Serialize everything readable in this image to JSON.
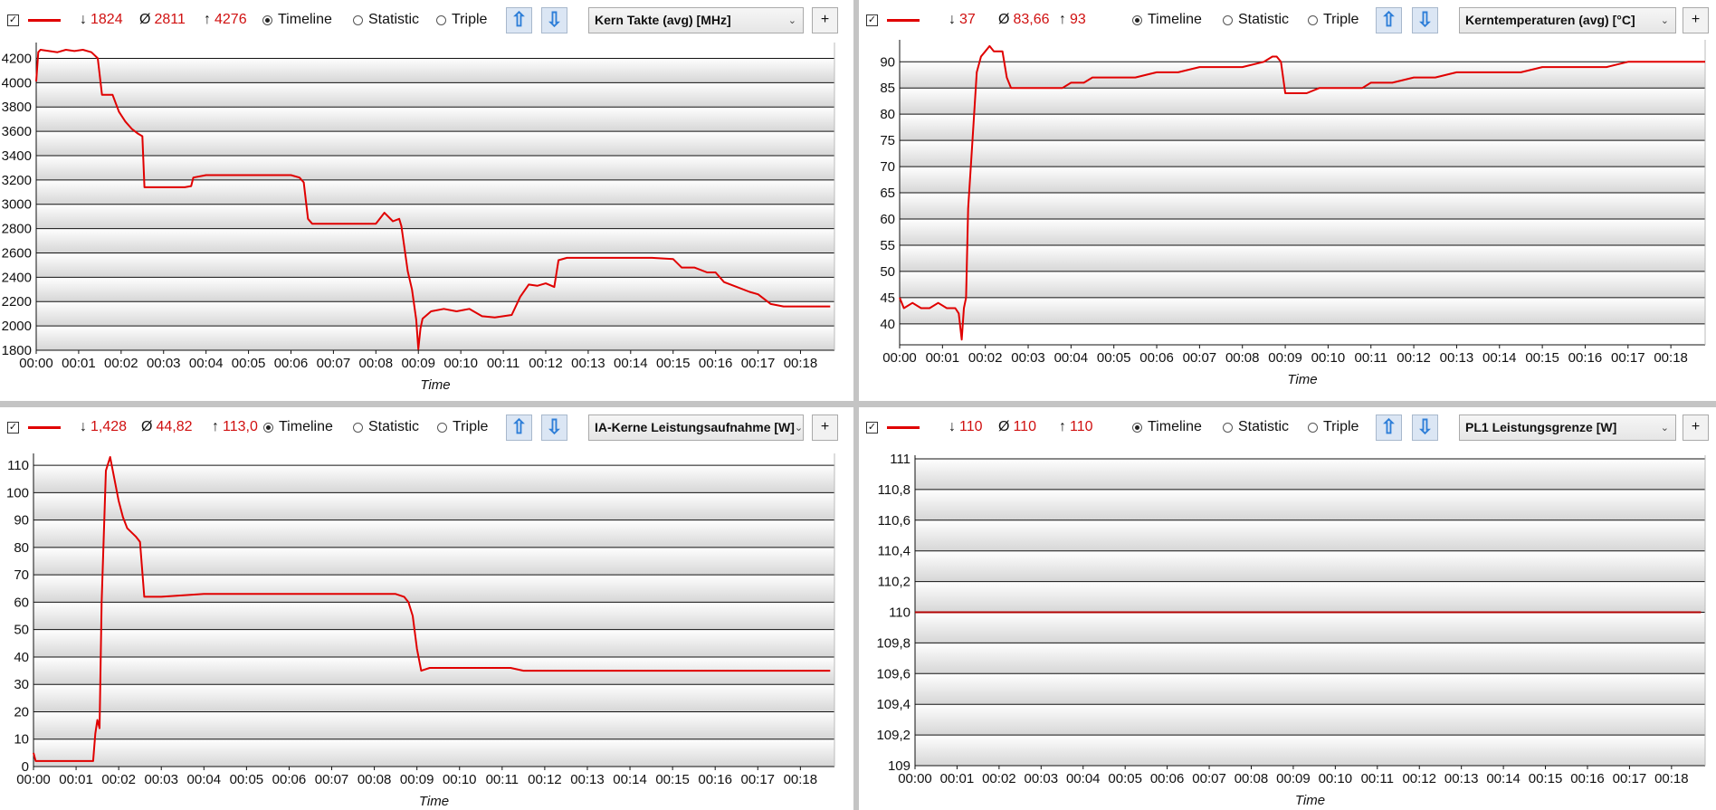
{
  "panels": [
    {
      "id": "p1",
      "stats": {
        "min": "1824",
        "avg": "2811",
        "max": "4276"
      },
      "modes": {
        "timeline": "Timeline",
        "statistic": "Statistic",
        "triple": "Triple",
        "selected": "Timeline"
      },
      "selector": "Kern Takte (avg) [MHz]",
      "plus": "+",
      "chart_data": {
        "type": "line",
        "xlabel": "Time",
        "x_ticks": [
          "00:00",
          "00:01",
          "00:02",
          "00:03",
          "00:04",
          "00:05",
          "00:06",
          "00:07",
          "00:08",
          "00:09",
          "00:10",
          "00:11",
          "00:12",
          "00:13",
          "00:14",
          "00:15",
          "00:16",
          "00:17",
          "00:18"
        ],
        "y_ticks": [
          "4200",
          "4000",
          "3800",
          "3600",
          "3400",
          "3200",
          "3000",
          "2800",
          "2600",
          "2400",
          "2200",
          "2000",
          "1800"
        ],
        "ylim": [
          1800,
          4300
        ],
        "xlim_min": [
          0,
          18.8
        ],
        "line_color": "#e00000",
        "series": [
          {
            "x": [
              0,
              0.05,
              0.1,
              0.3,
              0.5,
              0.7,
              0.9,
              1.1,
              1.3,
              1.45,
              1.55,
              1.8,
              1.95,
              2.1,
              2.25,
              2.4,
              2.5,
              2.55,
              2.6,
              2.8,
              3.2,
              3.5,
              3.65,
              3.7,
              4.0,
              4.5,
              5.0,
              5.5,
              6.0,
              6.2,
              6.3,
              6.4,
              6.5,
              6.8,
              7.0,
              7.5,
              8.0,
              8.2,
              8.4,
              8.55,
              8.6,
              8.75,
              8.85,
              8.95,
              9.0,
              9.05,
              9.1,
              9.3,
              9.6,
              9.9,
              10.2,
              10.5,
              10.8,
              11.0,
              11.2,
              11.4,
              11.6,
              11.8,
              12.0,
              12.2,
              12.3,
              12.5,
              13.0,
              13.5,
              14.0,
              14.5,
              15.0,
              15.2,
              15.5,
              15.8,
              16.0,
              16.2,
              16.5,
              16.8,
              17.0,
              17.3,
              17.6,
              18.0,
              18.3,
              18.5,
              18.7
            ],
            "values": [
              4010,
              4250,
              4270,
              4260,
              4250,
              4270,
              4260,
              4270,
              4250,
              4200,
              3900,
              3900,
              3760,
              3680,
              3620,
              3580,
              3560,
              3140,
              3140,
              3140,
              3140,
              3140,
              3150,
              3220,
              3240,
              3240,
              3240,
              3240,
              3240,
              3220,
              3180,
              2880,
              2840,
              2840,
              2840,
              2840,
              2840,
              2930,
              2860,
              2880,
              2820,
              2450,
              2300,
              2050,
              1810,
              1980,
              2060,
              2120,
              2140,
              2120,
              2140,
              2080,
              2070,
              2080,
              2090,
              2240,
              2340,
              2330,
              2350,
              2320,
              2540,
              2560,
              2560,
              2560,
              2560,
              2560,
              2550,
              2480,
              2480,
              2440,
              2440,
              2360,
              2320,
              2280,
              2260,
              2180,
              2160,
              2160,
              2160,
              2160,
              2160
            ]
          }
        ]
      }
    },
    {
      "id": "p2",
      "stats": {
        "min": "37",
        "avg": "83,66",
        "max": "93"
      },
      "modes": {
        "timeline": "Timeline",
        "statistic": "Statistic",
        "triple": "Triple",
        "selected": "Timeline"
      },
      "selector": "Kerntemperaturen (avg) [°C]",
      "plus": "+",
      "chart_data": {
        "type": "line",
        "xlabel": "Time",
        "x_ticks": [
          "00:00",
          "00:01",
          "00:02",
          "00:03",
          "00:04",
          "00:05",
          "00:06",
          "00:07",
          "00:08",
          "00:09",
          "00:10",
          "00:11",
          "00:12",
          "00:13",
          "00:14",
          "00:15",
          "00:16",
          "00:17",
          "00:18"
        ],
        "y_ticks": [
          "90",
          "85",
          "80",
          "75",
          "70",
          "65",
          "60",
          "55",
          "50",
          "45",
          "40"
        ],
        "ylim": [
          36,
          93.5
        ],
        "xlim_min": [
          0,
          18.8
        ],
        "line_color": "#e00000",
        "series": [
          {
            "x": [
              0,
              0.1,
              0.3,
              0.5,
              0.7,
              0.9,
              1.1,
              1.3,
              1.38,
              1.45,
              1.5,
              1.55,
              1.6,
              1.7,
              1.8,
              1.9,
              2.0,
              2.1,
              2.2,
              2.4,
              2.5,
              2.6,
              2.8,
              3.0,
              3.2,
              3.5,
              3.8,
              4.0,
              4.3,
              4.5,
              5.0,
              5.5,
              6.0,
              6.5,
              7.0,
              7.5,
              8.0,
              8.5,
              8.7,
              8.8,
              8.9,
              9.0,
              9.2,
              9.5,
              9.8,
              10.0,
              10.5,
              10.8,
              11.0,
              11.5,
              12.0,
              12.5,
              13.0,
              13.5,
              14.0,
              14.5,
              15.0,
              15.5,
              16.0,
              16.5,
              17.0,
              17.5,
              18.0,
              18.5,
              18.8
            ],
            "values": [
              45,
              43,
              44,
              43,
              43,
              44,
              43,
              43,
              42,
              37,
              43,
              45,
              62,
              75,
              88,
              91,
              92,
              93,
              92,
              92,
              87,
              85,
              85,
              85,
              85,
              85,
              85,
              86,
              86,
              87,
              87,
              87,
              88,
              88,
              89,
              89,
              89,
              90,
              91,
              91,
              90,
              84,
              84,
              84,
              85,
              85,
              85,
              85,
              86,
              86,
              87,
              87,
              88,
              88,
              88,
              88,
              89,
              89,
              89,
              89,
              90,
              90,
              90,
              90,
              90
            ]
          }
        ]
      }
    },
    {
      "id": "p3",
      "stats": {
        "min": "1,428",
        "avg": "44,82",
        "max": "113,0"
      },
      "modes": {
        "timeline": "Timeline",
        "statistic": "Statistic",
        "triple": "Triple",
        "selected": "Timeline"
      },
      "selector": "IA-Kerne Leistungsaufnahme [W]",
      "plus": "+",
      "chart_data": {
        "type": "line",
        "xlabel": "Time",
        "x_ticks": [
          "00:00",
          "00:01",
          "00:02",
          "00:03",
          "00:04",
          "00:05",
          "00:06",
          "00:07",
          "00:08",
          "00:09",
          "00:10",
          "00:11",
          "00:12",
          "00:13",
          "00:14",
          "00:15",
          "00:16",
          "00:17",
          "00:18"
        ],
        "y_ticks": [
          "110",
          "100",
          "90",
          "80",
          "70",
          "60",
          "50",
          "40",
          "30",
          "20",
          "10",
          "0"
        ],
        "ylim": [
          0,
          113
        ],
        "xlim_min": [
          0,
          18.8
        ],
        "line_color": "#e00000",
        "series": [
          {
            "x": [
              0,
              0.05,
              0.1,
              0.3,
              0.6,
              0.9,
              1.2,
              1.4,
              1.45,
              1.5,
              1.55,
              1.6,
              1.7,
              1.8,
              1.9,
              2.0,
              2.1,
              2.2,
              2.4,
              2.5,
              2.6,
              2.65,
              2.7,
              3.0,
              4.0,
              5.0,
              6.0,
              6.3,
              7.0,
              8.0,
              8.5,
              8.7,
              8.8,
              8.9,
              9.0,
              9.1,
              9.3,
              9.6,
              10.0,
              10.5,
              11.0,
              11.2,
              11.5,
              12.0,
              13.0,
              14.0,
              15.0,
              16.0,
              17.0,
              18.0,
              18.7
            ],
            "values": [
              5,
              2,
              2,
              2,
              2,
              2,
              2,
              2,
              12,
              17,
              14,
              60,
              108,
              113,
              105,
              97,
              91,
              87,
              84,
              82,
              62,
              62,
              62,
              62,
              63,
              63,
              63,
              63,
              63,
              63,
              63,
              62,
              60,
              55,
              43,
              35,
              36,
              36,
              36,
              36,
              36,
              36,
              35,
              35,
              35,
              35,
              35,
              35,
              35,
              35,
              35
            ]
          }
        ]
      }
    },
    {
      "id": "p4",
      "stats": {
        "min": "110",
        "avg": "110",
        "max": "110"
      },
      "modes": {
        "timeline": "Timeline",
        "statistic": "Statistic",
        "triple": "Triple",
        "selected": "Timeline"
      },
      "selector": "PL1 Leistungsgrenze [W]",
      "plus": "+",
      "chart_data": {
        "type": "line",
        "xlabel": "Time",
        "x_ticks": [
          "00:00",
          "00:01",
          "00:02",
          "00:03",
          "00:04",
          "00:05",
          "00:06",
          "00:07",
          "00:08",
          "00:09",
          "00:10",
          "00:11",
          "00:12",
          "00:13",
          "00:14",
          "00:15",
          "00:16",
          "00:17",
          "00:18"
        ],
        "y_ticks": [
          "111",
          "110,8",
          "110,6",
          "110,4",
          "110,2",
          "110",
          "109,8",
          "109,6",
          "109,4",
          "109,2",
          "109"
        ],
        "ylim": [
          109,
          111
        ],
        "xlim_min": [
          0,
          18.8
        ],
        "line_color": "#b00000",
        "series": [
          {
            "x": [
              0,
              18.7
            ],
            "values": [
              110,
              110
            ]
          }
        ]
      }
    }
  ]
}
